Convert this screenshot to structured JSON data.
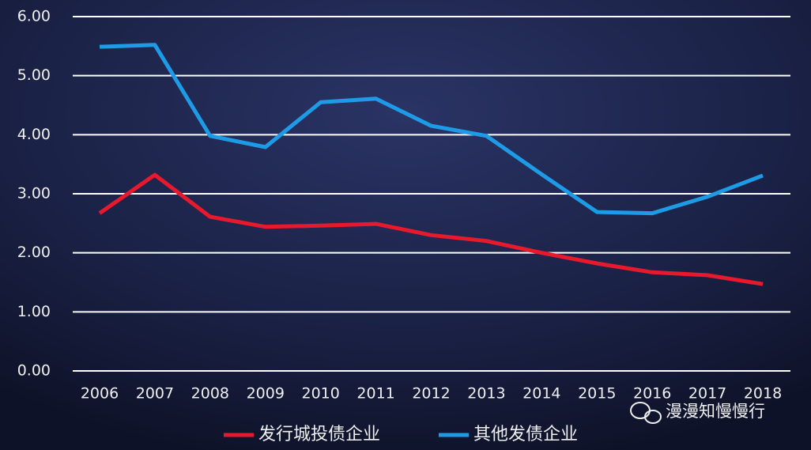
{
  "chart_data": {
    "type": "line",
    "categories": [
      "2006",
      "2007",
      "2008",
      "2009",
      "2010",
      "2011",
      "2012",
      "2013",
      "2014",
      "2015",
      "2016",
      "2017",
      "2018"
    ],
    "series": [
      {
        "name": "发行城投债企业",
        "color": "#e8192c",
        "values": [
          2.67,
          3.32,
          2.61,
          2.44,
          2.46,
          2.49,
          2.3,
          2.2,
          2.0,
          1.82,
          1.67,
          1.62,
          1.47
        ]
      },
      {
        "name": "其他发债企业",
        "color": "#1e9be6",
        "values": [
          5.49,
          5.52,
          3.98,
          3.79,
          4.55,
          4.61,
          4.15,
          3.98,
          3.33,
          2.69,
          2.67,
          2.95,
          3.31
        ]
      }
    ],
    "ylim": [
      0,
      6
    ],
    "yticks": [
      {
        "value": 0,
        "label": "0.00"
      },
      {
        "value": 1,
        "label": "1.00"
      },
      {
        "value": 2,
        "label": "2.00"
      },
      {
        "value": 3,
        "label": "3.00"
      },
      {
        "value": 4,
        "label": "4.00"
      },
      {
        "value": 5,
        "label": "5.00"
      },
      {
        "value": 6,
        "label": "6.00"
      }
    ],
    "grid": true,
    "legend": "bottom",
    "watermark": "漫漫知慢慢行"
  }
}
